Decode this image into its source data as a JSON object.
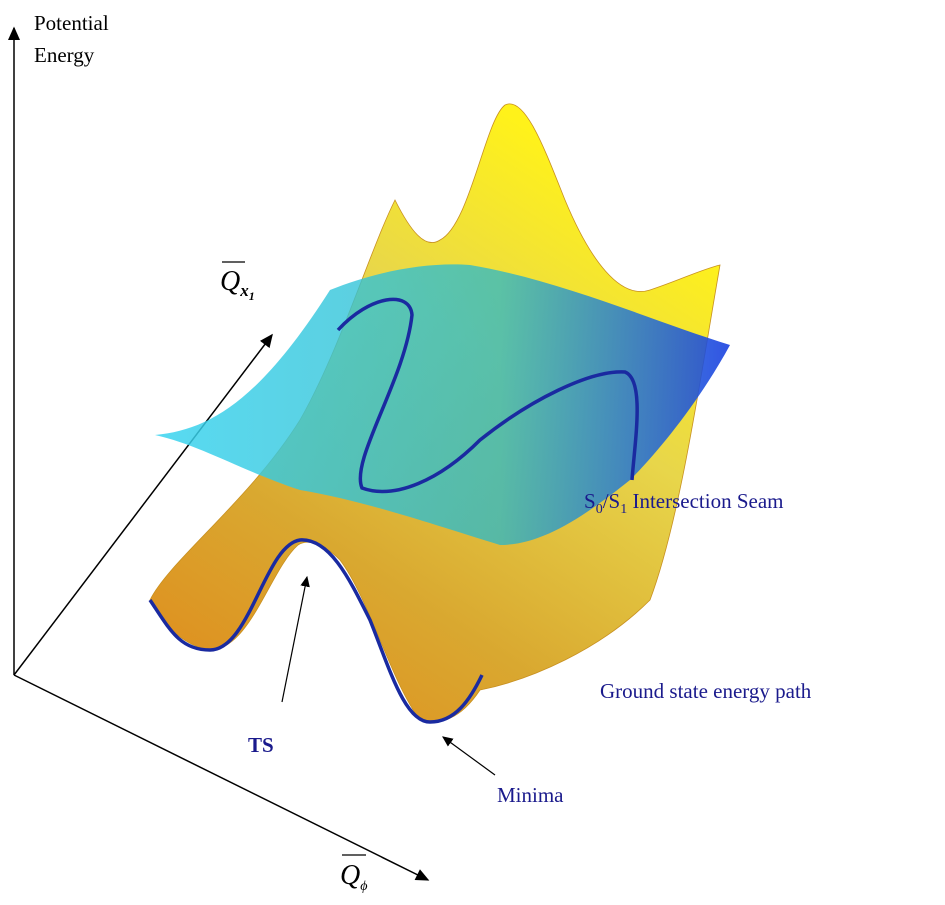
{
  "axes": {
    "vertical": {
      "label_lines": [
        "Potential",
        "Energy"
      ]
    },
    "depth": {
      "symbol": "Q",
      "subscript": "x",
      "sub_subscript": "1"
    },
    "horizontal": {
      "symbol": "Q",
      "subscript": "ϕ"
    }
  },
  "labels": {
    "seam": {
      "segments": [
        "S",
        "0",
        "/S",
        "1",
        " Intersection Seam"
      ]
    },
    "ground_path": "Ground state energy path",
    "ts": "TS",
    "minima": "Minima"
  }
}
